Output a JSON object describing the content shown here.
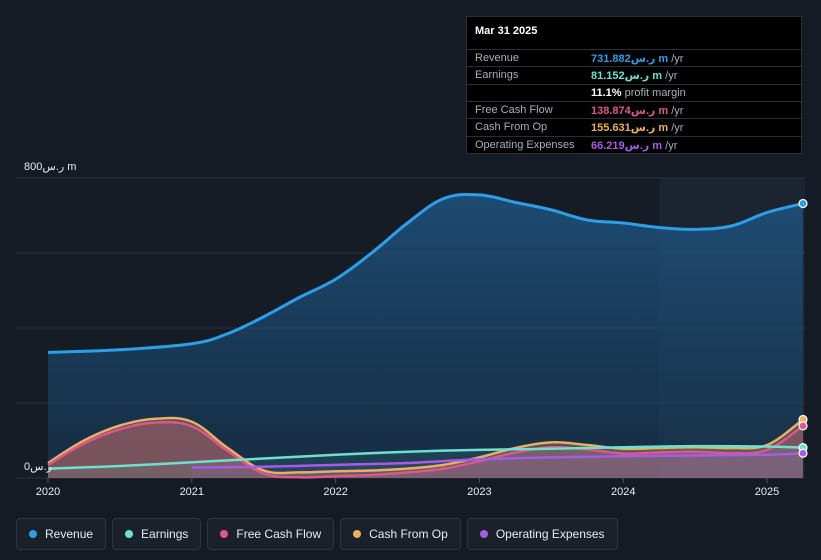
{
  "tooltip": {
    "date": "Mar 31 2025",
    "rows": [
      {
        "label": "Revenue",
        "value": "731.882ر.س m",
        "unit": "/yr",
        "color": "#2d9fe8"
      },
      {
        "label": "Earnings",
        "value": "81.152ر.س m",
        "unit": "/yr",
        "color": "#6ee0d0"
      },
      {
        "label": "",
        "value": "11.1%",
        "unit": "profit margin",
        "color": "#ffffff"
      },
      {
        "label": "Free Cash Flow",
        "value": "138.874ر.س m",
        "unit": "/yr",
        "color": "#e0568a"
      },
      {
        "label": "Cash From Op",
        "value": "155.631ر.س m",
        "unit": "/yr",
        "color": "#e8b060"
      },
      {
        "label": "Operating Expenses",
        "value": "66.219ر.س m",
        "unit": "/yr",
        "color": "#a55ce8"
      }
    ]
  },
  "legend": [
    {
      "label": "Revenue",
      "color": "#2d9fe8"
    },
    {
      "label": "Earnings",
      "color": "#6ee0d0"
    },
    {
      "label": "Free Cash Flow",
      "color": "#e0568a"
    },
    {
      "label": "Cash From Op",
      "color": "#e8b060"
    },
    {
      "label": "Operating Expenses",
      "color": "#a55ce8"
    }
  ],
  "chart_data": {
    "type": "area",
    "y_top_label": "800ر.س m",
    "y_bottom_label": "0ر.س",
    "ylim": [
      0,
      800
    ],
    "xlim": [
      2020.0,
      2025.25
    ],
    "x_ticks": [
      {
        "x": 2020,
        "label": "2020"
      },
      {
        "x": 2021,
        "label": "2021"
      },
      {
        "x": 2022,
        "label": "2022"
      },
      {
        "x": 2023,
        "label": "2023"
      },
      {
        "x": 2024,
        "label": "2024"
      },
      {
        "x": 2025,
        "label": "2025"
      }
    ],
    "highlight_from": 2024.25,
    "series": [
      {
        "name": "Revenue",
        "color": "#2d9fe8",
        "x": [
          2020.0,
          2020.5,
          2021.0,
          2021.25,
          2021.5,
          2021.75,
          2022.0,
          2022.25,
          2022.5,
          2022.75,
          2023.0,
          2023.25,
          2023.5,
          2023.75,
          2024.0,
          2024.25,
          2024.5,
          2024.75,
          2025.0,
          2025.25
        ],
        "y": [
          335,
          342,
          358,
          385,
          430,
          482,
          530,
          600,
          680,
          745,
          755,
          735,
          715,
          688,
          680,
          668,
          663,
          672,
          708,
          732
        ]
      },
      {
        "name": "Cash From Op",
        "color": "#e8b060",
        "x": [
          2020.0,
          2020.25,
          2020.5,
          2020.75,
          2021.0,
          2021.25,
          2021.5,
          2021.75,
          2022.0,
          2022.25,
          2022.5,
          2022.75,
          2023.0,
          2023.25,
          2023.5,
          2023.75,
          2024.0,
          2024.25,
          2024.5,
          2024.75,
          2025.0,
          2025.25
        ],
        "y": [
          40,
          100,
          140,
          158,
          150,
          80,
          20,
          15,
          18,
          20,
          25,
          35,
          55,
          80,
          95,
          88,
          78,
          80,
          82,
          80,
          88,
          156
        ]
      },
      {
        "name": "Free Cash Flow",
        "color": "#e0568a",
        "x": [
          2020.0,
          2020.25,
          2020.5,
          2020.75,
          2021.0,
          2021.25,
          2021.5,
          2021.75,
          2022.0,
          2022.25,
          2022.5,
          2022.75,
          2023.0,
          2023.25,
          2023.5,
          2023.75,
          2024.0,
          2024.25,
          2024.5,
          2024.75,
          2025.0,
          2025.25
        ],
        "y": [
          35,
          92,
          130,
          148,
          138,
          72,
          12,
          2,
          5,
          8,
          15,
          25,
          45,
          68,
          82,
          76,
          65,
          68,
          70,
          66,
          75,
          139
        ]
      },
      {
        "name": "Earnings",
        "color": "#6ee0d0",
        "x": [
          2020.0,
          2020.5,
          2021.0,
          2021.5,
          2022.0,
          2022.5,
          2023.0,
          2023.5,
          2024.0,
          2024.5,
          2025.0,
          2025.25
        ],
        "y": [
          25,
          32,
          42,
          52,
          62,
          70,
          75,
          78,
          82,
          85,
          84,
          81
        ]
      },
      {
        "name": "Operating Expenses",
        "color": "#a55ce8",
        "x": [
          2021.0,
          2021.5,
          2022.0,
          2022.5,
          2023.0,
          2023.5,
          2024.0,
          2024.5,
          2025.0,
          2025.25
        ],
        "y": [
          28,
          30,
          35,
          40,
          50,
          55,
          58,
          60,
          62,
          66
        ]
      }
    ]
  }
}
